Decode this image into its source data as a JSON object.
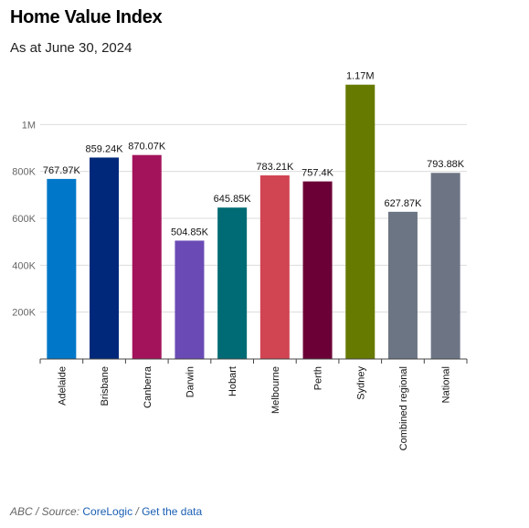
{
  "header": {
    "title": "Home Value Index",
    "subtitle": "As at June 30, 2024"
  },
  "footer": {
    "prefix": "ABC / Source: ",
    "source_link": "CoreLogic",
    "separator": " / ",
    "data_link": "Get the data"
  },
  "chart_data": {
    "type": "bar",
    "title": "Home Value Index",
    "subtitle": "As at June 30, 2024",
    "xlabel": "",
    "ylabel": "",
    "ylim": [
      0,
      1200000
    ],
    "yticks": [
      200000,
      400000,
      600000,
      800000,
      1000000
    ],
    "ytick_labels": [
      "200K",
      "400K",
      "600K",
      "800K",
      "1M"
    ],
    "grid": true,
    "categories": [
      "Adelaide",
      "Brisbane",
      "Canberra",
      "Darwin",
      "Hobart",
      "Melbourne",
      "Perth",
      "Sydney",
      "Combined regional",
      "National"
    ],
    "values": [
      767970,
      859240,
      870070,
      504850,
      645850,
      783210,
      757400,
      1170000,
      627870,
      793880
    ],
    "value_labels": [
      "767.97K",
      "859.24K",
      "870.07K",
      "504.85K",
      "645.85K",
      "783.21K",
      "757.4K",
      "1.17M",
      "627.87K",
      "793.88K"
    ],
    "colors": [
      "#0077c8",
      "#00287a",
      "#a3135c",
      "#6a4bb5",
      "#006b74",
      "#d14452",
      "#6b0036",
      "#667a00",
      "#6c7583",
      "#6d7585"
    ]
  }
}
